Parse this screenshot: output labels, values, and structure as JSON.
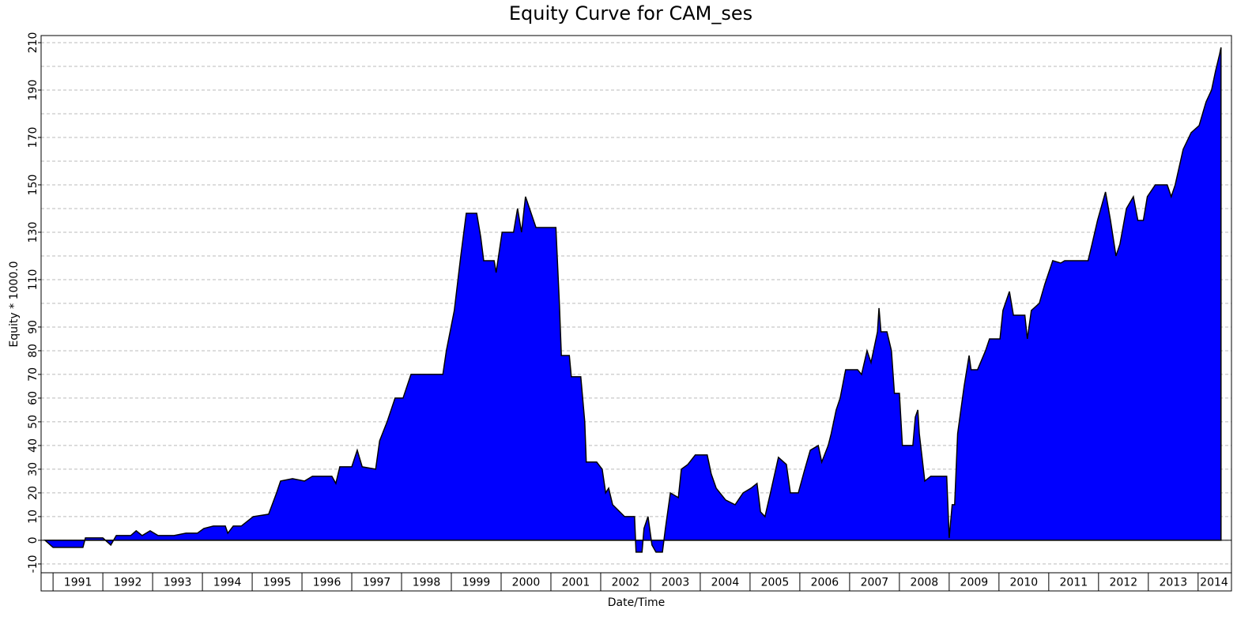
{
  "chart_data": {
    "type": "area",
    "title": "Equity Curve for CAM_ses",
    "xlabel": "Date/Time",
    "ylabel": "Equity * 1000.0",
    "color": "#0000ff",
    "grid": true,
    "xlim": [
      1990.76,
      2014.67
    ],
    "ylim": [
      -13.7,
      213
    ],
    "xticks": [
      1991,
      1992,
      1993,
      1994,
      1995,
      1996,
      1997,
      1998,
      1999,
      2000,
      2001,
      2002,
      2003,
      2004,
      2005,
      2006,
      2007,
      2008,
      2009,
      2010,
      2011,
      2012,
      2013,
      2014
    ],
    "yticks": [
      -10,
      0,
      10,
      20,
      30,
      40,
      50,
      60,
      70,
      80,
      90,
      110,
      130,
      150,
      170,
      190,
      210
    ],
    "yminor": [
      100,
      120,
      140,
      160,
      180,
      200
    ],
    "x": [
      1990.84,
      1991.0,
      1991.6,
      1991.65,
      1992.0,
      1992.16,
      1992.27,
      1992.56,
      1992.67,
      1992.79,
      1992.95,
      1993.11,
      1993.43,
      1993.67,
      1993.9,
      1994.03,
      1994.22,
      1994.46,
      1994.51,
      1994.62,
      1994.78,
      1995.02,
      1995.33,
      1995.49,
      1995.57,
      1995.81,
      1996.05,
      1996.21,
      1996.6,
      1996.68,
      1996.76,
      1997.0,
      1997.11,
      1997.21,
      1997.48,
      1997.56,
      1997.71,
      1997.87,
      1998.03,
      1998.19,
      1998.59,
      1998.83,
      1998.9,
      1999.06,
      1999.19,
      1999.3,
      1999.51,
      1999.59,
      1999.65,
      1999.86,
      1999.9,
      2000.02,
      2000.25,
      2000.33,
      2000.41,
      2000.49,
      2000.7,
      2001.1,
      2001.17,
      2001.21,
      2001.37,
      2001.41,
      2001.6,
      2001.68,
      2001.71,
      2001.92,
      2002.03,
      2002.1,
      2002.16,
      2002.24,
      2002.48,
      2002.68,
      2002.71,
      2002.83,
      2002.87,
      2002.95,
      2003.03,
      2003.11,
      2003.24,
      2003.3,
      2003.4,
      2003.56,
      2003.62,
      2003.75,
      2003.9,
      2004.0,
      2004.14,
      2004.22,
      2004.32,
      2004.51,
      2004.7,
      2004.86,
      2005.02,
      2005.14,
      2005.21,
      2005.3,
      2005.41,
      2005.57,
      2005.73,
      2005.81,
      2005.97,
      2006.1,
      2006.21,
      2006.37,
      2006.44,
      2006.57,
      2006.63,
      2006.73,
      2006.81,
      2006.92,
      2007.16,
      2007.24,
      2007.35,
      2007.43,
      2007.56,
      2007.59,
      2007.63,
      2007.75,
      2007.84,
      2007.9,
      2008.0,
      2008.06,
      2008.27,
      2008.32,
      2008.37,
      2008.4,
      2008.51,
      2008.63,
      2008.95,
      2009.0,
      2009.06,
      2009.11,
      2009.17,
      2009.3,
      2009.4,
      2009.44,
      2009.57,
      2009.73,
      2009.81,
      2010.02,
      2010.08,
      2010.21,
      2010.29,
      2010.52,
      2010.57,
      2010.65,
      2010.81,
      2010.92,
      2011.08,
      2011.24,
      2011.32,
      2011.79,
      2011.87,
      2011.98,
      2012.14,
      2012.24,
      2012.35,
      2012.43,
      2012.56,
      2012.7,
      2012.79,
      2012.9,
      2012.98,
      2013.14,
      2013.38,
      2013.46,
      2013.54,
      2013.7,
      2013.86,
      2014.02,
      2014.16,
      2014.27,
      2014.35,
      2014.43,
      2014.46
    ],
    "values": [
      0,
      -3,
      -3,
      1,
      1,
      -2,
      2,
      2,
      4,
      2,
      4,
      2,
      2,
      3,
      3,
      5,
      6,
      6,
      3,
      6,
      6,
      10,
      11,
      20,
      25,
      26,
      25,
      27,
      27,
      24,
      31,
      31,
      38,
      31,
      30,
      42,
      50,
      60,
      60,
      70,
      70,
      70,
      80,
      97,
      120,
      138,
      138,
      128,
      118,
      118,
      113,
      130,
      130,
      140,
      130,
      145,
      132,
      132,
      100,
      78,
      78,
      69,
      69,
      50,
      33,
      33,
      30,
      20,
      22,
      15,
      10,
      10,
      -5,
      -5,
      5,
      10,
      -2,
      -5,
      -5,
      5,
      20,
      18,
      30,
      32,
      36,
      36,
      36,
      28,
      22,
      17,
      15,
      20,
      22,
      24,
      12,
      10,
      20,
      35,
      32,
      20,
      20,
      30,
      38,
      40,
      33,
      40,
      45,
      55,
      60,
      72,
      72,
      70,
      80,
      75,
      88,
      98,
      88,
      88,
      80,
      62,
      62,
      40,
      40,
      52,
      55,
      45,
      25,
      27,
      27,
      1,
      15,
      15,
      45,
      65,
      78,
      72,
      72,
      80,
      85,
      85,
      97,
      105,
      95,
      95,
      85,
      97,
      100,
      108,
      118,
      117,
      118,
      118,
      125,
      135,
      147,
      135,
      120,
      125,
      140,
      145,
      135,
      135,
      145,
      150,
      150,
      145,
      150,
      165,
      172,
      175,
      185,
      190,
      198,
      205,
      208
    ]
  }
}
